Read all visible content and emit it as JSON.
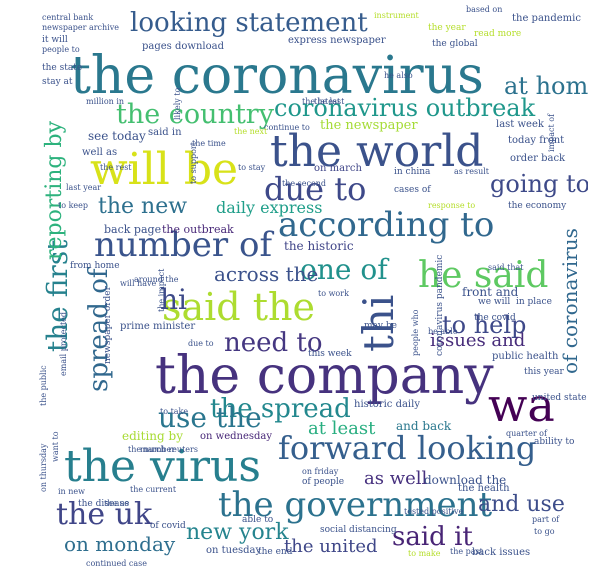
{
  "words": [
    {
      "text": "the coronavirus",
      "color": "#2a788e"
    },
    {
      "text": "the company",
      "color": "#46327e"
    },
    {
      "text": "the virus",
      "color": "#277f8e"
    },
    {
      "text": "the world",
      "color": "#3b528b"
    },
    {
      "text": "will be",
      "color": "#d8e219"
    },
    {
      "text": "the government",
      "color": "#2c728e"
    },
    {
      "text": "looking statement",
      "color": "#365c8d"
    },
    {
      "text": "the country",
      "color": "#44bf70"
    },
    {
      "text": "coronavirus outbreak",
      "color": "#1f978b"
    },
    {
      "text": "due to",
      "color": "#3e4989"
    },
    {
      "text": "according to",
      "color": "#31688e"
    },
    {
      "text": "number of",
      "color": "#3a548c"
    },
    {
      "text": "said the",
      "color": "#addc30"
    },
    {
      "text": "forward looking",
      "color": "#355f8d"
    },
    {
      "text": "he said",
      "color": "#5ec962"
    },
    {
      "text": "thi",
      "color": "#3b528b"
    },
    {
      "text": "wa",
      "color": "#440154"
    },
    {
      "text": "the uk",
      "color": "#404688"
    },
    {
      "text": "the first",
      "color": "#26828e"
    },
    {
      "text": "spread of",
      "color": "#31688e"
    },
    {
      "text": "the new",
      "color": "#2d708e"
    },
    {
      "text": "going to",
      "color": "#3e4a89"
    },
    {
      "text": "at home",
      "color": "#2c728e"
    },
    {
      "text": "one of",
      "color": "#21918c"
    },
    {
      "text": "the spread",
      "color": "#23888e"
    },
    {
      "text": "need to",
      "color": "#453781"
    },
    {
      "text": "to help",
      "color": "#3e4989"
    },
    {
      "text": "of coronavirus",
      "color": "#31688e"
    },
    {
      "text": "use the",
      "color": "#2a768e"
    },
    {
      "text": "new york",
      "color": "#25848e"
    },
    {
      "text": "said it",
      "color": "#482475"
    },
    {
      "text": "on monday",
      "color": "#2e6e8e"
    },
    {
      "text": "reporting by",
      "color": "#2db27d"
    },
    {
      "text": "hi",
      "color": "#3e4a89"
    },
    {
      "text": "daily express",
      "color": "#1f9e89"
    },
    {
      "text": "across the",
      "color": "#3b518b"
    },
    {
      "text": "the united",
      "color": "#3f4788"
    },
    {
      "text": "at least",
      "color": "#28ae80"
    },
    {
      "text": "as well",
      "color": "#46307e"
    },
    {
      "text": "issues and",
      "color": "#472c7a"
    },
    {
      "text": "and use",
      "color": "#3d4d8a"
    },
    {
      "text": "the newspaper",
      "color": "#a5db36"
    },
    {
      "text": "see today",
      "color": "#3b528b"
    },
    {
      "text": "back page",
      "color": "#3b528b"
    },
    {
      "text": "the outbreak",
      "color": "#482878"
    },
    {
      "text": "the historic",
      "color": "#404588"
    },
    {
      "text": "front and",
      "color": "#3b528b"
    },
    {
      "text": "download the",
      "color": "#3b528b"
    },
    {
      "text": "editing by",
      "color": "#a8db34"
    },
    {
      "text": "public health",
      "color": "#3b528b"
    },
    {
      "text": "historic daily",
      "color": "#3b528b"
    },
    {
      "text": "and back",
      "color": "#2a788e"
    },
    {
      "text": "on wednesday",
      "color": "#482878"
    },
    {
      "text": "on march",
      "color": "#404688"
    },
    {
      "text": "prime minister",
      "color": "#3b528b"
    },
    {
      "text": "pages download",
      "color": "#3b528b"
    },
    {
      "text": "express newspaper",
      "color": "#3b528b"
    },
    {
      "text": "last week",
      "color": "#3b528b"
    },
    {
      "text": "today front",
      "color": "#3b528b"
    },
    {
      "text": "order back",
      "color": "#3b528b"
    },
    {
      "text": "well as",
      "color": "#3b528b"
    },
    {
      "text": "said in",
      "color": "#3b528b"
    },
    {
      "text": "on tuesday",
      "color": "#3b528b"
    },
    {
      "text": "the end",
      "color": "#3b528b"
    },
    {
      "text": "the health",
      "color": "#3b528b"
    },
    {
      "text": "back issues",
      "color": "#3b528b"
    },
    {
      "text": "central bank",
      "color": "#3b528b"
    },
    {
      "text": "newspaper archive",
      "color": "#3b528b"
    },
    {
      "text": "the pandemic",
      "color": "#3b528b"
    },
    {
      "text": "read more",
      "color": "#b5de2b"
    },
    {
      "text": "from home",
      "color": "#3b528b"
    },
    {
      "text": "cases of",
      "color": "#3b528b"
    },
    {
      "text": "the economy",
      "color": "#3b528b"
    },
    {
      "text": "coronavirus pandemic",
      "color": "#3b528b"
    },
    {
      "text": "newspaper order",
      "color": "#3b528b"
    },
    {
      "text": "we will",
      "color": "#3b528b"
    },
    {
      "text": "in place",
      "color": "#3b528b"
    },
    {
      "text": "the covid",
      "color": "#3b528b"
    },
    {
      "text": "able to",
      "color": "#3b528b"
    },
    {
      "text": "of covid",
      "color": "#3b528b"
    },
    {
      "text": "of people",
      "color": "#3b528b"
    },
    {
      "text": "this week",
      "color": "#3b528b"
    },
    {
      "text": "may be",
      "color": "#3b528b"
    },
    {
      "text": "ability to",
      "color": "#3b528b"
    },
    {
      "text": "united state",
      "color": "#3b528b"
    },
    {
      "text": "this year",
      "color": "#3b528b"
    },
    {
      "text": "the disease",
      "color": "#3b528b"
    },
    {
      "text": "social distancing",
      "color": "#3b528b"
    },
    {
      "text": "continued case",
      "color": "#3b528b"
    },
    {
      "text": "the past",
      "color": "#3b528b"
    },
    {
      "text": "in china",
      "color": "#3b528b"
    },
    {
      "text": "the year",
      "color": "#b5de2b"
    },
    {
      "text": "the global",
      "color": "#3b528b"
    },
    {
      "text": "it will",
      "color": "#3b528b"
    },
    {
      "text": "the state",
      "color": "#3b528b"
    },
    {
      "text": "stay at",
      "color": "#3b528b"
    },
    {
      "text": "last year",
      "color": "#3b528b"
    },
    {
      "text": "to keep",
      "color": "#3b528b"
    },
    {
      "text": "the number",
      "color": "#3b528b"
    },
    {
      "text": "tested positive",
      "color": "#3b528b"
    },
    {
      "text": "in new",
      "color": "#3b528b"
    },
    {
      "text": "on friday",
      "color": "#3b528b"
    },
    {
      "text": "part of",
      "color": "#3b528b"
    },
    {
      "text": "to go",
      "color": "#3b528b"
    },
    {
      "text": "the us",
      "color": "#3b528b"
    },
    {
      "text": "on thursday",
      "color": "#3b528b"
    },
    {
      "text": "want to",
      "color": "#3b528b"
    },
    {
      "text": "the public",
      "color": "#3b528b"
    },
    {
      "text": "based on",
      "color": "#3b528b"
    },
    {
      "text": "instrument",
      "color": "#b5de2b"
    },
    {
      "text": "people to",
      "color": "#3b528b"
    },
    {
      "text": "million in",
      "color": "#3b528b"
    },
    {
      "text": "to support",
      "color": "#3b528b"
    },
    {
      "text": "continue to",
      "color": "#3b528b"
    },
    {
      "text": "the next",
      "color": "#b5de2b"
    },
    {
      "text": "as result",
      "color": "#3b528b"
    },
    {
      "text": "response to",
      "color": "#b5de2b"
    },
    {
      "text": "impact of",
      "color": "#3b528b"
    },
    {
      "text": "he also",
      "color": "#3b528b"
    },
    {
      "text": "the second",
      "color": "#3b528b"
    },
    {
      "text": "the last",
      "color": "#3b528b"
    },
    {
      "text": "to stay",
      "color": "#3b528b"
    },
    {
      "text": "the time",
      "color": "#3b528b"
    },
    {
      "text": "will have",
      "color": "#3b528b"
    },
    {
      "text": "to make",
      "color": "#b5de2b"
    },
    {
      "text": "the current",
      "color": "#3b528b"
    },
    {
      "text": "march reuters",
      "color": "#3b528b"
    },
    {
      "text": "said that",
      "color": "#3b528b"
    },
    {
      "text": "the impact",
      "color": "#3b528b"
    },
    {
      "text": "around the",
      "color": "#3b528b"
    },
    {
      "text": "quarter of",
      "color": "#3b528b"
    },
    {
      "text": "the rest",
      "color": "#3b528b"
    },
    {
      "text": "the latest",
      "color": "#3b528b"
    },
    {
      "text": "email protected",
      "color": "#3b528b"
    },
    {
      "text": "due to",
      "color": "#3b528b"
    },
    {
      "text": "likely to",
      "color": "#3b528b"
    },
    {
      "text": "people who",
      "color": "#3b528b"
    },
    {
      "text": "to take",
      "color": "#3b528b"
    },
    {
      "text": "be able",
      "color": "#3b528b"
    },
    {
      "text": "to work",
      "color": "#3b528b"
    }
  ]
}
